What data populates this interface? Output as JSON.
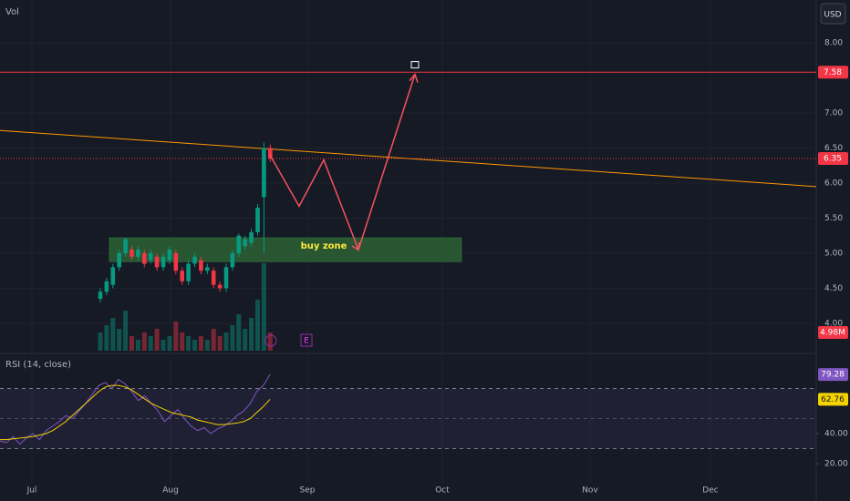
{
  "chart_data": {
    "type": "candlestick",
    "currency": "USD",
    "volume_label": "Vol",
    "ylim": [
      3.61,
      8.61
    ],
    "yticks": [
      {
        "value": 8,
        "label": "8.00"
      },
      {
        "value": 7,
        "label": "7.00"
      },
      {
        "value": 6.5,
        "label": "6.50"
      },
      {
        "value": 6,
        "label": "6.00"
      },
      {
        "value": 5.5,
        "label": "5.50"
      },
      {
        "value": 5,
        "label": "5.00"
      },
      {
        "value": 4.5,
        "label": "4.50"
      },
      {
        "value": 4,
        "label": "4.00"
      }
    ],
    "x_labels": [
      "Jul",
      "Aug",
      "Sep",
      "Oct",
      "Nov",
      "Dec"
    ],
    "up_color": "#089981",
    "down_color": "#f23645",
    "open": [
      4.35,
      4.45,
      4.55,
      4.8,
      5.0,
      5.05,
      4.95,
      5.0,
      4.9,
      4.95,
      4.8,
      4.9,
      5.0,
      4.75,
      4.6,
      4.85,
      4.9,
      4.75,
      4.75,
      4.55,
      4.5,
      4.8,
      5.0,
      5.1,
      5.15,
      5.3,
      5.8,
      6.5
    ],
    "high": [
      4.5,
      4.65,
      4.85,
      5.05,
      5.22,
      5.1,
      5.1,
      5.05,
      5.05,
      5.0,
      5.0,
      5.1,
      5.05,
      4.8,
      4.9,
      5.0,
      4.95,
      4.85,
      4.8,
      4.6,
      4.85,
      5.05,
      5.28,
      5.25,
      5.35,
      5.7,
      6.58,
      6.55
    ],
    "low": [
      4.3,
      4.4,
      4.5,
      4.75,
      4.95,
      4.9,
      4.9,
      4.8,
      4.85,
      4.75,
      4.75,
      4.85,
      4.7,
      4.55,
      4.55,
      4.8,
      4.7,
      4.7,
      4.5,
      4.45,
      4.45,
      4.75,
      4.95,
      5.05,
      5.1,
      5.25,
      5.0,
      6.3
    ],
    "close": [
      4.45,
      4.6,
      4.8,
      5.0,
      5.2,
      4.95,
      5.05,
      4.85,
      5.0,
      4.8,
      4.95,
      5.05,
      4.75,
      4.6,
      4.85,
      4.95,
      4.75,
      4.8,
      4.55,
      4.5,
      4.8,
      5.0,
      5.25,
      5.2,
      5.3,
      5.65,
      6.5,
      6.35
    ],
    "volume": {
      "values": [
        5,
        7,
        9,
        6,
        11,
        4,
        3,
        5,
        4,
        6,
        3,
        4,
        8,
        5,
        4,
        3,
        4,
        3,
        6,
        4,
        5,
        7,
        10,
        6,
        9,
        14,
        24,
        4.98
      ],
      "value_labels": {
        "27": "4.98M"
      }
    },
    "resistance": 7.58,
    "last_price": 6.35,
    "trendline": [
      6.75,
      5.95
    ],
    "buy_zone": {
      "range": [
        4.88,
        5.22
      ],
      "label": "buy zone"
    },
    "projection": [
      6.4,
      5.67,
      6.33,
      5.05,
      7.55
    ],
    "earnings_marker": "E",
    "rsi": {
      "label": "RSI (14, close)",
      "ylim": [
        10.3,
        92.1
      ],
      "bands": [
        70,
        50,
        30
      ],
      "yticks": [
        {
          "value": 40,
          "label": "40.00"
        },
        {
          "value": 20,
          "label": "20.00"
        }
      ],
      "values": [
        35,
        34,
        38,
        33,
        37,
        40,
        36,
        42,
        45,
        48,
        52,
        50,
        55,
        60,
        66,
        72,
        74,
        70,
        76,
        73,
        68,
        62,
        65,
        60,
        55,
        48,
        52,
        56,
        50,
        45,
        42,
        44,
        40,
        43,
        45,
        48,
        52,
        55,
        60,
        68,
        72,
        79.28
      ],
      "ma": [
        36,
        36,
        36.5,
        37,
        37.5,
        38,
        39,
        40,
        42,
        45,
        48,
        52,
        56,
        60,
        64,
        68,
        71,
        72,
        72,
        71,
        69,
        66,
        63,
        60,
        58,
        56,
        54,
        53,
        52,
        51,
        49,
        48,
        47,
        46,
        46,
        46.5,
        47,
        48,
        50,
        54,
        58,
        62.76
      ],
      "last_labels": [
        79.28,
        62.76
      ]
    }
  }
}
